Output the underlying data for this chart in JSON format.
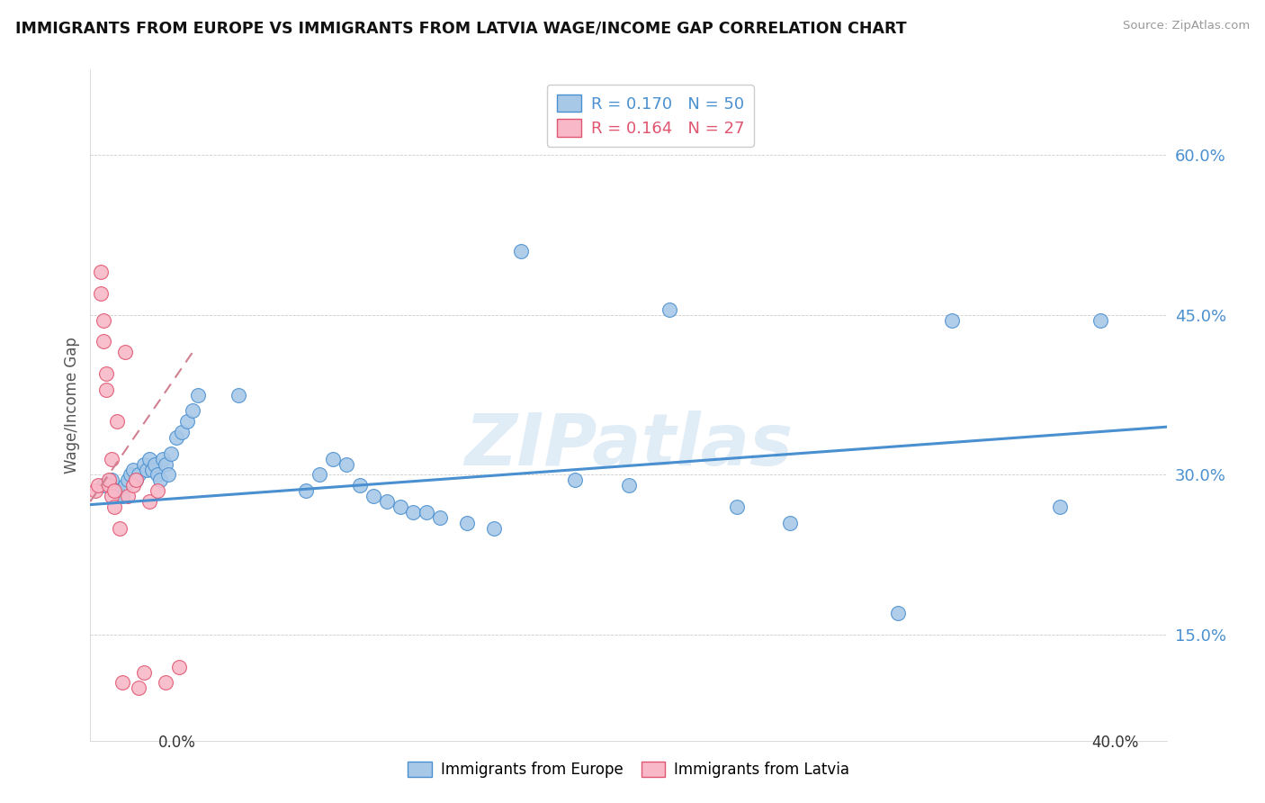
{
  "title": "IMMIGRANTS FROM EUROPE VS IMMIGRANTS FROM LATVIA WAGE/INCOME GAP CORRELATION CHART",
  "source": "Source: ZipAtlas.com",
  "ylabel": "Wage/Income Gap",
  "ytick_labels": [
    "15.0%",
    "30.0%",
    "45.0%",
    "60.0%"
  ],
  "ytick_values": [
    0.15,
    0.3,
    0.45,
    0.6
  ],
  "xlim": [
    0.0,
    0.4
  ],
  "ylim": [
    0.05,
    0.68
  ],
  "legend_r_europe": "R = 0.170",
  "legend_n_europe": "N = 50",
  "legend_r_latvia": "R = 0.164",
  "legend_n_latvia": "N = 27",
  "europe_color": "#a8c8e8",
  "latvia_color": "#f8b8c8",
  "europe_line_color": "#4a90d0",
  "latvia_line_color": "#e05570",
  "blue_scatter_x": [
    0.005,
    0.008,
    0.01,
    0.012,
    0.013,
    0.014,
    0.015,
    0.016,
    0.017,
    0.018,
    0.02,
    0.021,
    0.022,
    0.023,
    0.024,
    0.025,
    0.026,
    0.027,
    0.028,
    0.029,
    0.03,
    0.032,
    0.034,
    0.036,
    0.038,
    0.04,
    0.055,
    0.08,
    0.085,
    0.09,
    0.095,
    0.1,
    0.105,
    0.11,
    0.115,
    0.12,
    0.125,
    0.13,
    0.14,
    0.15,
    0.16,
    0.18,
    0.2,
    0.215,
    0.24,
    0.26,
    0.3,
    0.32,
    0.36,
    0.375
  ],
  "blue_scatter_y": [
    0.29,
    0.295,
    0.285,
    0.28,
    0.29,
    0.295,
    0.3,
    0.305,
    0.295,
    0.3,
    0.31,
    0.305,
    0.315,
    0.305,
    0.31,
    0.3,
    0.295,
    0.315,
    0.31,
    0.3,
    0.32,
    0.335,
    0.34,
    0.35,
    0.36,
    0.375,
    0.375,
    0.285,
    0.3,
    0.315,
    0.31,
    0.29,
    0.28,
    0.275,
    0.27,
    0.265,
    0.265,
    0.26,
    0.255,
    0.25,
    0.51,
    0.295,
    0.29,
    0.455,
    0.27,
    0.255,
    0.17,
    0.445,
    0.27,
    0.445
  ],
  "pink_scatter_x": [
    0.002,
    0.003,
    0.004,
    0.004,
    0.005,
    0.005,
    0.006,
    0.006,
    0.007,
    0.007,
    0.008,
    0.008,
    0.009,
    0.009,
    0.01,
    0.011,
    0.012,
    0.013,
    0.014,
    0.016,
    0.017,
    0.018,
    0.02,
    0.022,
    0.025,
    0.028,
    0.033
  ],
  "pink_scatter_y": [
    0.285,
    0.29,
    0.47,
    0.49,
    0.425,
    0.445,
    0.38,
    0.395,
    0.29,
    0.295,
    0.28,
    0.315,
    0.27,
    0.285,
    0.35,
    0.25,
    0.105,
    0.415,
    0.28,
    0.29,
    0.295,
    0.1,
    0.115,
    0.275,
    0.285,
    0.105,
    0.12
  ],
  "blue_trend_x": [
    0.0,
    0.4
  ],
  "blue_trend_y": [
    0.272,
    0.345
  ],
  "pink_trend_x": [
    0.0,
    0.038
  ],
  "pink_trend_y": [
    0.275,
    0.415
  ]
}
